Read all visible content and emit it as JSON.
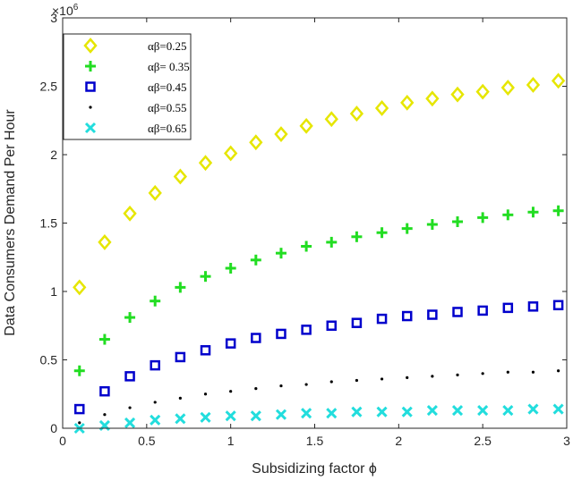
{
  "chart_data": {
    "type": "scatter",
    "title": "",
    "xlabel": "Subsidizing factor ϕ",
    "ylabel": "Data Consumers Demand Per Hour",
    "exponent_label": "×10",
    "exponent_value": "6",
    "xlim": [
      0,
      3
    ],
    "ylim": [
      0,
      3
    ],
    "x_ticks": [
      "0",
      "0.5",
      "1",
      "1.5",
      "2",
      "2.5",
      "3"
    ],
    "y_ticks": [
      "0",
      "0.5",
      "1",
      "1.5",
      "2",
      "2.5",
      "3"
    ],
    "legend_position": "top-left",
    "x": [
      0.1,
      0.25,
      0.4,
      0.55,
      0.7,
      0.85,
      1.0,
      1.15,
      1.3,
      1.45,
      1.6,
      1.75,
      1.9,
      2.05,
      2.2,
      2.35,
      2.5,
      2.65,
      2.8,
      2.95
    ],
    "series": [
      {
        "name": "αβ=0.25",
        "marker": "diamond",
        "color": "#e6e600",
        "values": [
          1.03,
          1.36,
          1.57,
          1.72,
          1.84,
          1.94,
          2.01,
          2.09,
          2.15,
          2.21,
          2.26,
          2.3,
          2.34,
          2.38,
          2.41,
          2.44,
          2.46,
          2.49,
          2.51,
          2.54
        ]
      },
      {
        "name": "αβ= 0.35",
        "marker": "plus",
        "color": "#22dd22",
        "values": [
          0.42,
          0.65,
          0.81,
          0.93,
          1.03,
          1.11,
          1.17,
          1.23,
          1.28,
          1.33,
          1.36,
          1.4,
          1.43,
          1.46,
          1.49,
          1.51,
          1.54,
          1.56,
          1.58,
          1.59
        ]
      },
      {
        "name": "αβ=0.45",
        "marker": "square",
        "color": "#0000cc",
        "values": [
          0.14,
          0.27,
          0.38,
          0.46,
          0.52,
          0.57,
          0.62,
          0.66,
          0.69,
          0.72,
          0.75,
          0.77,
          0.8,
          0.82,
          0.83,
          0.85,
          0.86,
          0.88,
          0.89,
          0.9
        ]
      },
      {
        "name": "αβ=0.55",
        "marker": "dot",
        "color": "#000000",
        "values": [
          0.04,
          0.1,
          0.15,
          0.19,
          0.22,
          0.25,
          0.27,
          0.29,
          0.31,
          0.32,
          0.34,
          0.35,
          0.36,
          0.37,
          0.38,
          0.39,
          0.4,
          0.41,
          0.41,
          0.42
        ]
      },
      {
        "name": "αβ=0.65",
        "marker": "x",
        "color": "#22dddd",
        "values": [
          0.0,
          0.02,
          0.04,
          0.06,
          0.07,
          0.08,
          0.09,
          0.09,
          0.1,
          0.11,
          0.11,
          0.12,
          0.12,
          0.12,
          0.13,
          0.13,
          0.13,
          0.13,
          0.14,
          0.14
        ]
      }
    ]
  }
}
